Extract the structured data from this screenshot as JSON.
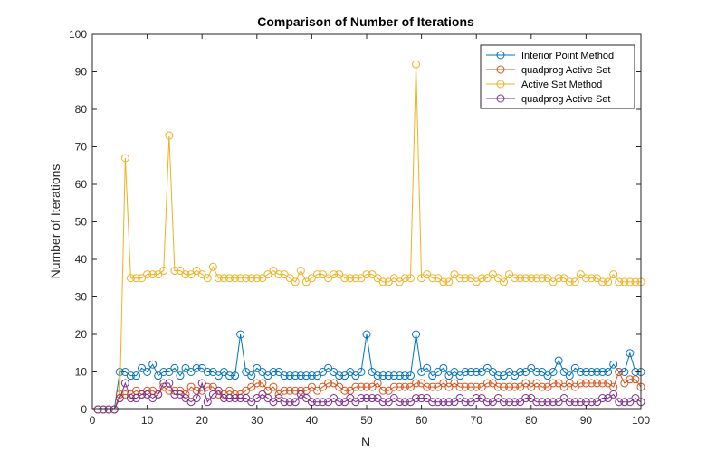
{
  "chart_data": {
    "type": "line",
    "title": "Comparison of Number of Iterations",
    "xlabel": "N",
    "ylabel": "Number of Iterations",
    "xlim": [
      0,
      100
    ],
    "ylim": [
      0,
      100
    ],
    "xticks": [
      0,
      10,
      20,
      30,
      40,
      50,
      60,
      70,
      80,
      90,
      100
    ],
    "yticks": [
      0,
      10,
      20,
      30,
      40,
      50,
      60,
      70,
      80,
      90,
      100
    ],
    "grid": false,
    "legend_position": "top-right",
    "marker": "circle",
    "x": [
      1,
      2,
      3,
      4,
      5,
      6,
      7,
      8,
      9,
      10,
      11,
      12,
      13,
      14,
      15,
      16,
      17,
      18,
      19,
      20,
      21,
      22,
      23,
      24,
      25,
      26,
      27,
      28,
      29,
      30,
      31,
      32,
      33,
      34,
      35,
      36,
      37,
      38,
      39,
      40,
      41,
      42,
      43,
      44,
      45,
      46,
      47,
      48,
      49,
      50,
      51,
      52,
      53,
      54,
      55,
      56,
      57,
      58,
      59,
      60,
      61,
      62,
      63,
      64,
      65,
      66,
      67,
      68,
      69,
      70,
      71,
      72,
      73,
      74,
      75,
      76,
      77,
      78,
      79,
      80,
      81,
      82,
      83,
      84,
      85,
      86,
      87,
      88,
      89,
      90,
      91,
      92,
      93,
      94,
      95,
      96,
      97,
      98,
      99,
      100
    ],
    "series": [
      {
        "name": "Interior Point Method",
        "color": "#0072BD",
        "values": [
          0,
          0,
          0,
          0,
          10,
          10,
          9,
          9,
          11,
          10,
          12,
          9,
          10,
          10,
          11,
          9,
          11,
          10,
          11,
          11,
          10,
          10,
          9,
          10,
          9,
          9,
          20,
          10,
          9,
          11,
          10,
          9,
          10,
          10,
          9,
          9,
          9,
          9,
          9,
          9,
          9,
          10,
          11,
          10,
          9,
          9,
          10,
          9,
          10,
          20,
          10,
          9,
          9,
          9,
          9,
          9,
          9,
          9,
          20,
          10,
          11,
          9,
          10,
          11,
          9,
          10,
          9,
          10,
          10,
          10,
          10,
          11,
          10,
          9,
          9,
          10,
          9,
          10,
          10,
          11,
          10,
          10,
          9,
          10,
          13,
          10,
          9,
          11,
          10,
          10,
          10,
          10,
          10,
          10,
          12,
          10,
          10,
          15,
          10,
          10
        ]
      },
      {
        "name": "quadprog Active Set",
        "color": "#D95319",
        "values": [
          0,
          0,
          0,
          0,
          4,
          4,
          4,
          5,
          4,
          5,
          5,
          4,
          6,
          5,
          5,
          5,
          4,
          6,
          5,
          5,
          6,
          6,
          4,
          4,
          5,
          4,
          4,
          5,
          6,
          7,
          7,
          5,
          6,
          4,
          5,
          5,
          5,
          5,
          5,
          6,
          5,
          6,
          7,
          7,
          6,
          5,
          5,
          6,
          6,
          6,
          6,
          7,
          5,
          5,
          6,
          6,
          6,
          6,
          7,
          7,
          6,
          6,
          6,
          7,
          6,
          7,
          6,
          6,
          6,
          6,
          6,
          7,
          7,
          6,
          6,
          6,
          6,
          6,
          7,
          6,
          7,
          6,
          6,
          7,
          7,
          6,
          7,
          6,
          7,
          7,
          7,
          7,
          7,
          7,
          6,
          10,
          7,
          8,
          8,
          6
        ]
      },
      {
        "name": "Active Set Method",
        "color": "#EDB120",
        "values": [
          0,
          0,
          0,
          0,
          3,
          67,
          35,
          35,
          35,
          36,
          36,
          36,
          37,
          73,
          37,
          37,
          36,
          36,
          37,
          36,
          35,
          38,
          35,
          35,
          35,
          35,
          35,
          35,
          35,
          35,
          35,
          36,
          37,
          36,
          36,
          35,
          34,
          37,
          34,
          35,
          36,
          36,
          35,
          36,
          36,
          35,
          35,
          35,
          35,
          36,
          36,
          35,
          34,
          34,
          35,
          34,
          35,
          35,
          92,
          35,
          36,
          35,
          35,
          34,
          34,
          36,
          35,
          35,
          35,
          34,
          35,
          35,
          36,
          35,
          34,
          36,
          35,
          35,
          35,
          35,
          35,
          35,
          35,
          34,
          35,
          35,
          34,
          34,
          36,
          35,
          35,
          35,
          34,
          34,
          36,
          34,
          34,
          34,
          34,
          34
        ]
      },
      {
        "name": "quadprog Active Set",
        "color": "#7E2F8E",
        "values": [
          0,
          0,
          0,
          0,
          3,
          7,
          3,
          3,
          4,
          4,
          3,
          4,
          7,
          7,
          4,
          4,
          3,
          2,
          3,
          7,
          2,
          4,
          5,
          3,
          3,
          3,
          3,
          3,
          2,
          3,
          4,
          3,
          2,
          3,
          2,
          2,
          2,
          4,
          3,
          2,
          2,
          2,
          2,
          3,
          2,
          2,
          3,
          2,
          3,
          3,
          3,
          3,
          2,
          2,
          3,
          2,
          2,
          2,
          3,
          3,
          3,
          2,
          2,
          2,
          2,
          2,
          3,
          2,
          2,
          3,
          3,
          2,
          2,
          3,
          2,
          2,
          2,
          2,
          3,
          3,
          2,
          2,
          2,
          2,
          2,
          3,
          2,
          2,
          2,
          2,
          2,
          2,
          3,
          3,
          4,
          2,
          2,
          2,
          3,
          2
        ]
      }
    ]
  }
}
